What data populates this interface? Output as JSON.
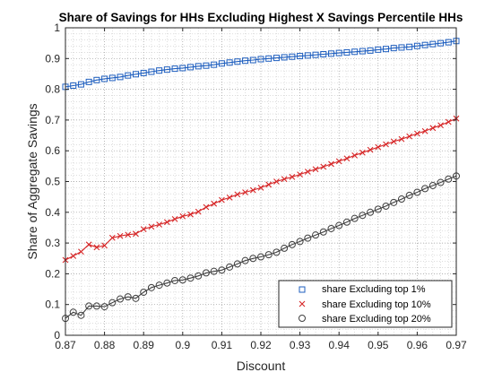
{
  "chart_data": {
    "type": "line",
    "title": "Share of Savings for HHs Excluding Highest X Savings Percentile HHs",
    "xlabel": "Discount",
    "ylabel": "Share of Aggregate Savings",
    "xlim": [
      0.87,
      0.97
    ],
    "ylim": [
      0,
      1
    ],
    "xticks": [
      "0.87",
      "0.88",
      "0.89",
      "0.9",
      "0.91",
      "0.92",
      "0.93",
      "0.94",
      "0.95",
      "0.96",
      "0.97"
    ],
    "yticks": [
      "0",
      "0.1",
      "0.2",
      "0.3",
      "0.4",
      "0.5",
      "0.6",
      "0.7",
      "0.8",
      "0.9",
      "1"
    ],
    "grid": "major and minor, dotted",
    "legend_position": "bottom-right",
    "x": [
      0.87,
      0.872,
      0.874,
      0.876,
      0.878,
      0.88,
      0.882,
      0.884,
      0.886,
      0.888,
      0.89,
      0.892,
      0.894,
      0.896,
      0.898,
      0.9,
      0.902,
      0.904,
      0.906,
      0.908,
      0.91,
      0.912,
      0.914,
      0.916,
      0.918,
      0.92,
      0.922,
      0.924,
      0.926,
      0.928,
      0.93,
      0.932,
      0.934,
      0.936,
      0.938,
      0.94,
      0.942,
      0.944,
      0.946,
      0.948,
      0.95,
      0.952,
      0.954,
      0.956,
      0.958,
      0.96,
      0.962,
      0.964,
      0.966,
      0.968,
      0.97
    ],
    "series": [
      {
        "name": "share Excluding top 1%",
        "color": "#1f5fbf",
        "marker": "square",
        "values": [
          0.808,
          0.812,
          0.816,
          0.824,
          0.83,
          0.834,
          0.837,
          0.84,
          0.845,
          0.849,
          0.853,
          0.857,
          0.861,
          0.864,
          0.867,
          0.869,
          0.872,
          0.875,
          0.877,
          0.88,
          0.884,
          0.887,
          0.89,
          0.893,
          0.895,
          0.898,
          0.9,
          0.902,
          0.904,
          0.906,
          0.908,
          0.91,
          0.912,
          0.914,
          0.916,
          0.918,
          0.92,
          0.922,
          0.924,
          0.926,
          0.929,
          0.931,
          0.934,
          0.936,
          0.938,
          0.941,
          0.944,
          0.947,
          0.95,
          0.953,
          0.957
        ]
      },
      {
        "name": "share Excluding top 10%",
        "color": "#d62728",
        "marker": "x",
        "values": [
          0.245,
          0.258,
          0.272,
          0.295,
          0.286,
          0.292,
          0.317,
          0.323,
          0.327,
          0.33,
          0.345,
          0.353,
          0.36,
          0.368,
          0.378,
          0.387,
          0.393,
          0.402,
          0.417,
          0.428,
          0.44,
          0.448,
          0.458,
          0.465,
          0.472,
          0.48,
          0.49,
          0.5,
          0.508,
          0.515,
          0.523,
          0.532,
          0.54,
          0.548,
          0.557,
          0.566,
          0.575,
          0.585,
          0.594,
          0.603,
          0.612,
          0.621,
          0.63,
          0.638,
          0.647,
          0.656,
          0.664,
          0.674,
          0.683,
          0.694,
          0.705
        ]
      },
      {
        "name": "share Excluding top 20%",
        "color": "#404040",
        "marker": "circle",
        "values": [
          0.055,
          0.075,
          0.065,
          0.095,
          0.095,
          0.093,
          0.106,
          0.118,
          0.125,
          0.12,
          0.14,
          0.155,
          0.163,
          0.17,
          0.178,
          0.18,
          0.186,
          0.193,
          0.203,
          0.208,
          0.212,
          0.222,
          0.232,
          0.243,
          0.25,
          0.255,
          0.262,
          0.27,
          0.283,
          0.295,
          0.305,
          0.316,
          0.326,
          0.336,
          0.347,
          0.357,
          0.368,
          0.38,
          0.39,
          0.4,
          0.41,
          0.42,
          0.432,
          0.443,
          0.455,
          0.465,
          0.477,
          0.487,
          0.497,
          0.508,
          0.518
        ]
      }
    ]
  }
}
